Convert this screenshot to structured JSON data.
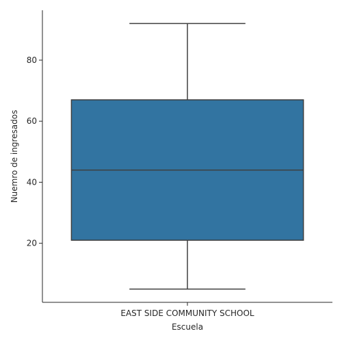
{
  "chart_data": {
    "type": "box",
    "title": "",
    "xlabel": "Escuela",
    "ylabel": "Nuemro de ingresados",
    "categories": [
      "EAST SIDE COMMUNITY SCHOOL"
    ],
    "boxes": [
      {
        "category": "EAST SIDE COMMUNITY SCHOOL",
        "whisker_low": 5,
        "q1": 21,
        "median": 44,
        "q3": 67,
        "whisker_high": 92
      }
    ],
    "yticks": [
      20,
      40,
      60,
      80
    ],
    "ylim": [
      0.65,
      96.35
    ],
    "grid": false,
    "legend": "none",
    "colors": {
      "box_fill": "#3274a1",
      "line": "#3f3f3f",
      "axis": "#262626"
    }
  }
}
